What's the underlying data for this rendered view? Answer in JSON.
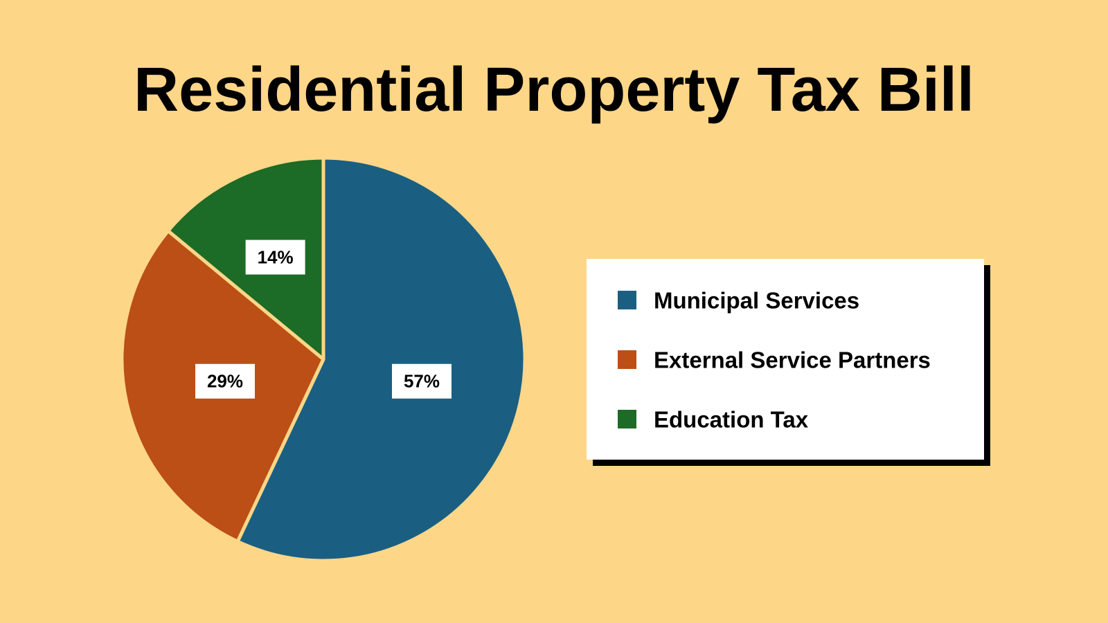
{
  "chart_data": {
    "type": "pie",
    "title": "Residential Property Tax Bill",
    "categories": [
      "Municipal Services",
      "External Service Partners",
      "Education Tax"
    ],
    "values": [
      57,
      29,
      14
    ],
    "value_labels": [
      "57%",
      "29%",
      "14%"
    ],
    "colors": [
      "#1a5f82",
      "#bb4f15",
      "#1c6b26"
    ]
  }
}
